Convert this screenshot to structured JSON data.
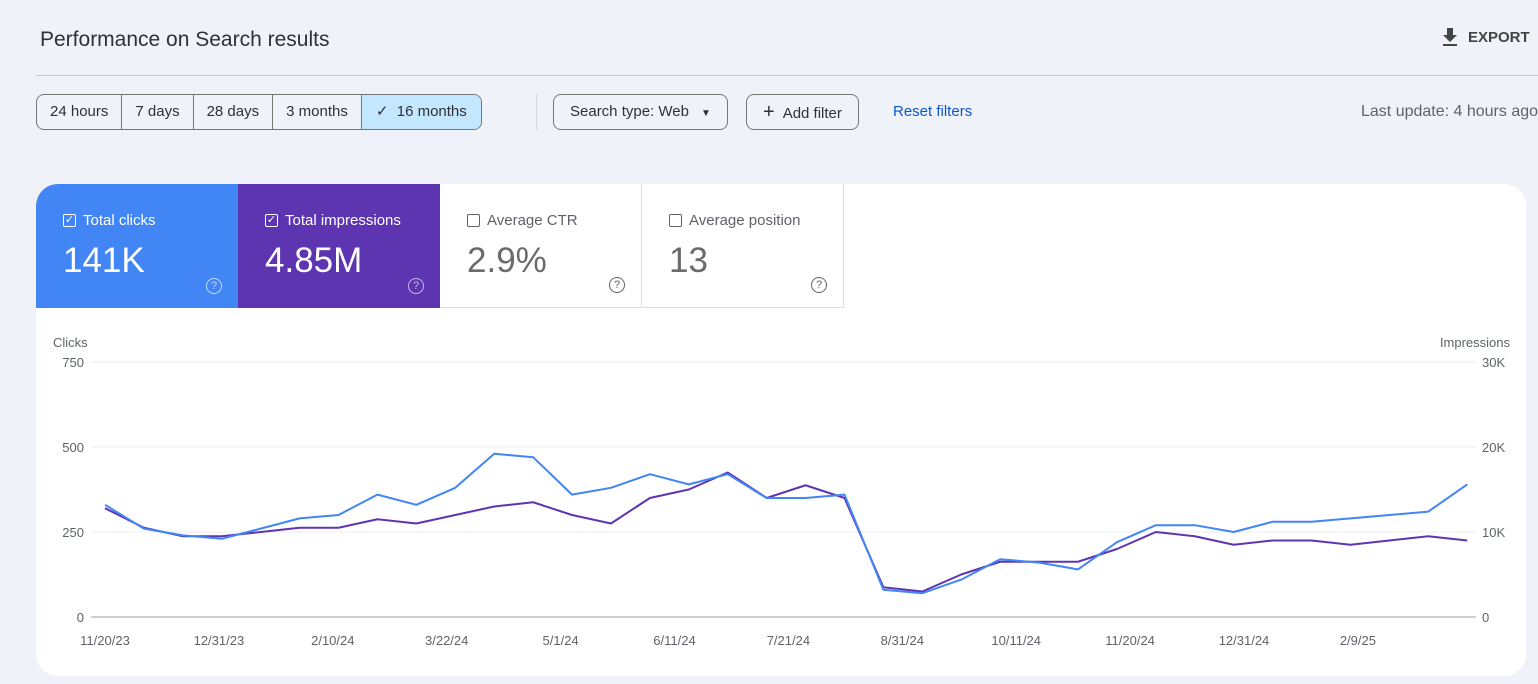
{
  "header": {
    "title": "Performance on Search results",
    "export_label": "EXPORT"
  },
  "filters": {
    "ranges": [
      "24 hours",
      "7 days",
      "28 days",
      "3 months",
      "16 months"
    ],
    "selected_range": "16 months",
    "search_type": "Search type: Web",
    "add_filter": "Add filter",
    "reset": "Reset filters",
    "last_update": "Last update: 4 hours ago"
  },
  "metrics": [
    {
      "label": "Total clicks",
      "value": "141K",
      "checked": true,
      "color": "#4285f4"
    },
    {
      "label": "Total impressions",
      "value": "4.85M",
      "checked": true,
      "color": "#5e35b1"
    },
    {
      "label": "Average CTR",
      "value": "2.9%",
      "checked": false
    },
    {
      "label": "Average position",
      "value": "13",
      "checked": false
    }
  ],
  "chart_data": {
    "type": "line",
    "left_axis_label": "Clicks",
    "right_axis_label": "Impressions",
    "left_ticks": [
      "0",
      "250",
      "500",
      "750"
    ],
    "right_ticks": [
      "0",
      "10K",
      "20K",
      "30K"
    ],
    "x_ticks": [
      "11/20/23",
      "12/31/23",
      "2/10/24",
      "3/22/24",
      "5/1/24",
      "6/11/24",
      "7/21/24",
      "8/31/24",
      "10/11/24",
      "11/20/24",
      "12/31/24",
      "2/9/25"
    ],
    "ylim_left": [
      0,
      750
    ],
    "ylim_right": [
      0,
      30000
    ],
    "grid": true,
    "x": [
      "2023-11-20",
      "2023-12-04",
      "2023-12-18",
      "2024-01-01",
      "2024-01-15",
      "2024-01-29",
      "2024-02-12",
      "2024-02-26",
      "2024-03-11",
      "2024-03-25",
      "2024-04-08",
      "2024-04-22",
      "2024-05-06",
      "2024-05-20",
      "2024-06-03",
      "2024-06-17",
      "2024-07-01",
      "2024-07-15",
      "2024-07-29",
      "2024-08-12",
      "2024-08-26",
      "2024-09-09",
      "2024-09-23",
      "2024-10-07",
      "2024-10-21",
      "2024-11-04",
      "2024-11-18",
      "2024-12-02",
      "2024-12-16",
      "2024-12-30",
      "2025-01-13",
      "2025-01-27",
      "2025-02-10",
      "2025-02-24",
      "2025-03-10",
      "2025-03-24"
    ],
    "series": [
      {
        "name": "Clicks",
        "axis": "left",
        "color": "#4285f4",
        "values": [
          330,
          260,
          240,
          230,
          260,
          290,
          300,
          360,
          330,
          380,
          480,
          470,
          360,
          380,
          420,
          390,
          420,
          350,
          350,
          360,
          80,
          70,
          110,
          170,
          160,
          140,
          220,
          270,
          270,
          250,
          280,
          280,
          290,
          300,
          310,
          390
        ]
      },
      {
        "name": "Impressions",
        "axis": "right",
        "color": "#5e35b1",
        "values": [
          12800,
          10500,
          9500,
          9500,
          10000,
          10500,
          10500,
          11500,
          11000,
          12000,
          13000,
          13500,
          12000,
          11000,
          14000,
          15000,
          17000,
          14000,
          15500,
          14000,
          3500,
          3000,
          5000,
          6500,
          6500,
          6500,
          8000,
          10000,
          9500,
          8500,
          9000,
          9000,
          8500,
          9000,
          9500,
          9000
        ]
      }
    ]
  }
}
